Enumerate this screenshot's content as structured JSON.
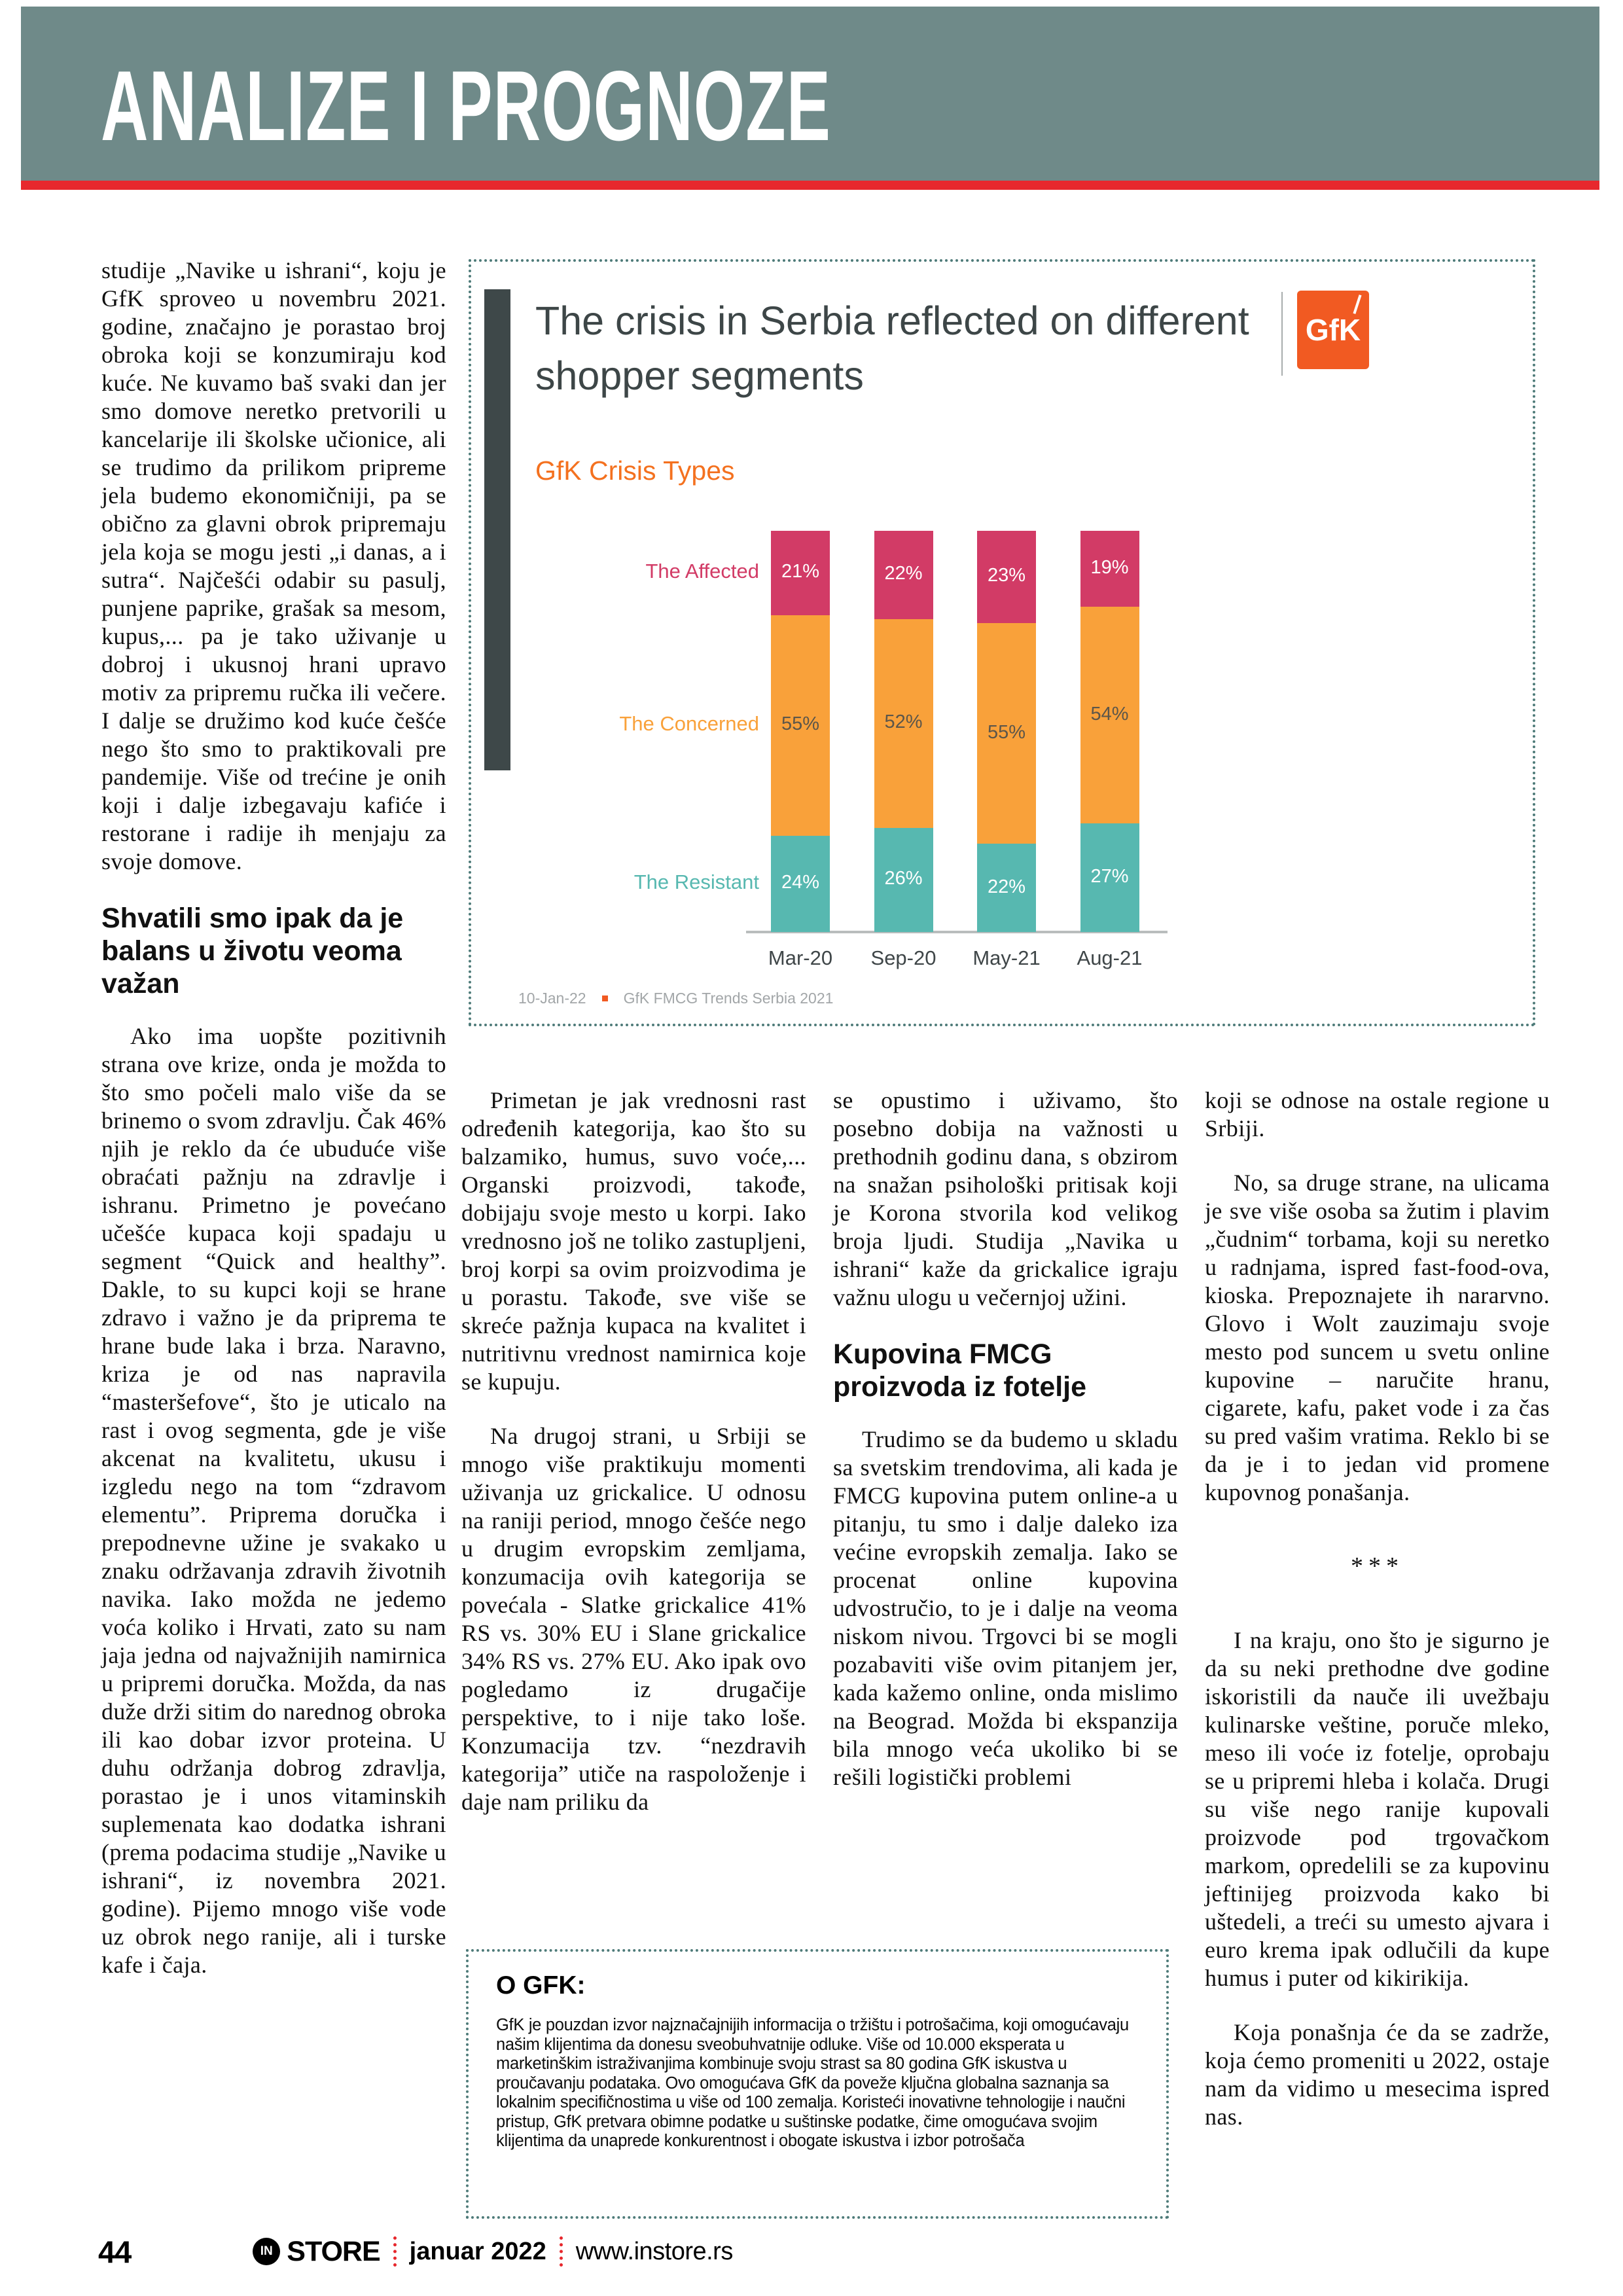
{
  "palette": {
    "header_band": "#6f8a89",
    "accent_red": "#e7282d",
    "dotted_border": "#4e7b79",
    "gfk_orange": "#f15a22",
    "subtitle_orange": "#f4711f"
  },
  "header": {
    "title": "ANALIZE I PROGNOZE"
  },
  "article": {
    "col1": {
      "p1": "studije „Navike u ishrani“, koju je GfK sproveo u novembru 2021. godine, značajno je porastao broj obroka koji se konzumiraju kod kuće. Ne kuvamo baš svaki dan jer smo domove neretko pretvorili u kancelarije ili školske učionice, ali se trudimo da prilikom pripreme jela budemo ekonomičniji, pa se obično za glavni obrok pripremaju jela koja se mogu jesti „i danas, a i sutra“. Najčešći odabir su pasulj, punjene paprike, grašak sa mesom, kupus,... pa je tako uživanje u dobroj i ukusnoj hrani upravo motiv za pripremu ručka ili večere. I dalje se družimo kod kuće češće nego što smo to praktikovali pre pandemije. Više od trećine je onih koji i dalje izbegavaju kafiće i restorane i radije ih menjaju za svoje domove.",
      "h2": "Shvatili smo ipak da je balans u životu veoma važan",
      "p2": "Ako ima uopšte pozitivnih strana ove krize, onda je možda to što smo počeli malo više da se brinemo o svom zdravlju. Čak 46% njih je reklo da će ubuduće više obraćati pažnju na zdravlje i ishranu. Primetno je povećano učešće kupaca koji spadaju u segment “Quick and healthy”. Dakle, to su kupci koji se hrane zdravo i važno je da priprema te hrane bude laka i brza. Naravno, kriza je od nas napravila “masteršefove“, što je uticalo na rast i ovog segmenta, gde je više akcenat na kvalitetu, ukusu i izgledu nego na tom “zdravom elementu”. Priprema doručka i prepodnevne užine je svakako u znaku održavanja zdravih životnih navika. Iako možda ne jedemo voća koliko i Hrvati, zato su nam jaja jedna od najvažnijih namirnica u pripremi doručka. Možda, da nas duže drži sitim do narednog obroka ili kao dobar izvor proteina. U duhu održanja dobrog zdravlja, porastao je i unos vitaminskih suplemenata kao dodatka ishrani (prema podacima studije „Navike u ishrani“, iz novembra 2021. godine). Pijemo mnogo više vode uz obrok nego ranije, ali i turske kafe i čaja."
    },
    "col2": {
      "p1": "Primetan je jak vrednosni rast određenih kategorija, kao što su balzamiko, humus, suvo voće,... Organski proizvodi, takođe, dobijaju svoje mesto u korpi. Iako vrednosno još ne toliko zastupljeni, broj korpi sa ovim proizvodima je u porastu. Takođe, sve više se skreće pažnja kupaca na kvalitet i nutritivnu vrednost namirnica koje se kupuju.",
      "p2": "Na drugoj strani, u Srbiji se mnogo više praktikuju momenti uživanja uz grickalice. U odnosu na raniji period, mnogo češće nego u drugim evropskim zemljama, konzumacija ovih kategorija se povećala - Slatke grickalice 41% RS vs. 30% EU i Slane grickalice 34% RS vs. 27% EU. Ako ipak ovo pogledamo iz drugačije perspektive, to i nije tako loše. Konzumacija tzv. “nezdravih kategorija” utiče na raspoloženje i daje nam priliku da"
    },
    "col3": {
      "p1": "se opustimo i uživamo, što posebno dobija na važnosti u prethodnih godinu dana, s obzirom na snažan psihološki pritisak koji je Korona stvorila kod velikog broja ljudi. Studija „Navika u ishrani“ kaže da grickalice igraju važnu ulogu u večernjoj užini.",
      "h2": "Kupovina FMCG proizvoda iz fotelje",
      "p2": "Trudimo se da budemo u skladu sa svetskim trendovima, ali kada je FMCG kupovina putem online-a u pitanju, tu smo i dalje daleko iza većine evropskih zemalja. Iako se procenat online kupovina udvostručio, to je i dalje na veoma niskom nivou. Trgovci bi se mogli pozabaviti više ovim pitanjem jer, kada kažemo online, onda mislimo na Beograd. Možda bi ekspanzija bila mnogo veća ukoliko bi se rešili logistički problemi"
    },
    "col4": {
      "p1": "koji se odnose na ostale regione u Srbiji.",
      "p2": "No, sa druge strane, na ulicama je sve više osoba sa žutim i plavim „čudnim“ torbama, koji su neretko u radnjama, ispred fast-food-ova, kioska. Prepoznajete ih nararvno. Glovo i Wolt zauzimaju svoje mesto pod suncem u svetu online kupovine – naručite hranu, cigarete, kafu, paket vode i za čas su pred vašim vratima. Reklo bi se da je i to jedan vid promene kupovnog ponašanja.",
      "separator": "***",
      "p3": "I na kraju, ono što je sigurno je da su neki prethodne dve godine iskoristili da nauče ili uvežbaju kulinarske veštine, poruče mleko, meso ili voće iz fotelje, oprobaju se u pripremi hleba i kolača. Drugi su više nego ranije kupovali proizvode pod trgovačkom markom, opredelili se za kupovinu jeftinijeg proizvoda kako bi uštedeli, a treći su umesto ajvara i euro krema ipak odlučili da kupe humus i puter od kikirikija.",
      "p4": "Koja ponašnja će da se zadrže, koja ćemo promeniti u 2022, ostaje nam da vidimo u mesecima ispred nas."
    }
  },
  "chart_data": {
    "type": "bar",
    "stacked": true,
    "title": "The crisis in Serbia reflected on different shopper segments",
    "subtitle": "GfK Crisis Types",
    "logo": "GfK",
    "categories": [
      "Mar-20",
      "Sep-20",
      "May-21",
      "Aug-21"
    ],
    "series": [
      {
        "name": "The Affected",
        "color": "#d23b66",
        "label_color": "#ffffff",
        "values": [
          21,
          22,
          23,
          19
        ]
      },
      {
        "name": "The Concerned",
        "color": "#f9a13a",
        "label_color": "#5c564a",
        "values": [
          55,
          52,
          55,
          54
        ]
      },
      {
        "name": "The Resistant",
        "color": "#57b8b0",
        "label_color": "#ffffff",
        "values": [
          24,
          26,
          22,
          27
        ]
      }
    ],
    "value_suffix": "%",
    "ylim": [
      0,
      100
    ],
    "grid": false,
    "legend_position": "left-row-labels",
    "footnote_date": "10-Jan-22",
    "footnote_source": "GfK FMCG Trends Serbia 2021"
  },
  "about_box": {
    "title": "O GFK:",
    "body": "GfK je pouzdan izvor najznačajnijih informacija o tržištu i potrošačima, koji omogućavaju našim klijentima da donesu sveobuhvatnije odluke. Više od 10.000 eksperata u marketinškim istraživanjima kombinuje svoju strast sa 80 godina GfK iskustva u proučavanju podataka. Ovo omogućava GfK da poveže ključna globalna saznanja sa lokalnim specifičnostima u više od 100 zemalja. Koristeći inovativne tehnologije i naučni pristup, GfK pretvara obimne podatke u suštinske podatke, čime omogućava svojim klijentima da unaprede konkurentnost i obogate iskustva i izbor potrošača"
  },
  "footer": {
    "page_number": "44",
    "brand_in": "IN",
    "brand_store": "STORE",
    "issue": "januar 2022",
    "website": "www.instore.rs"
  }
}
